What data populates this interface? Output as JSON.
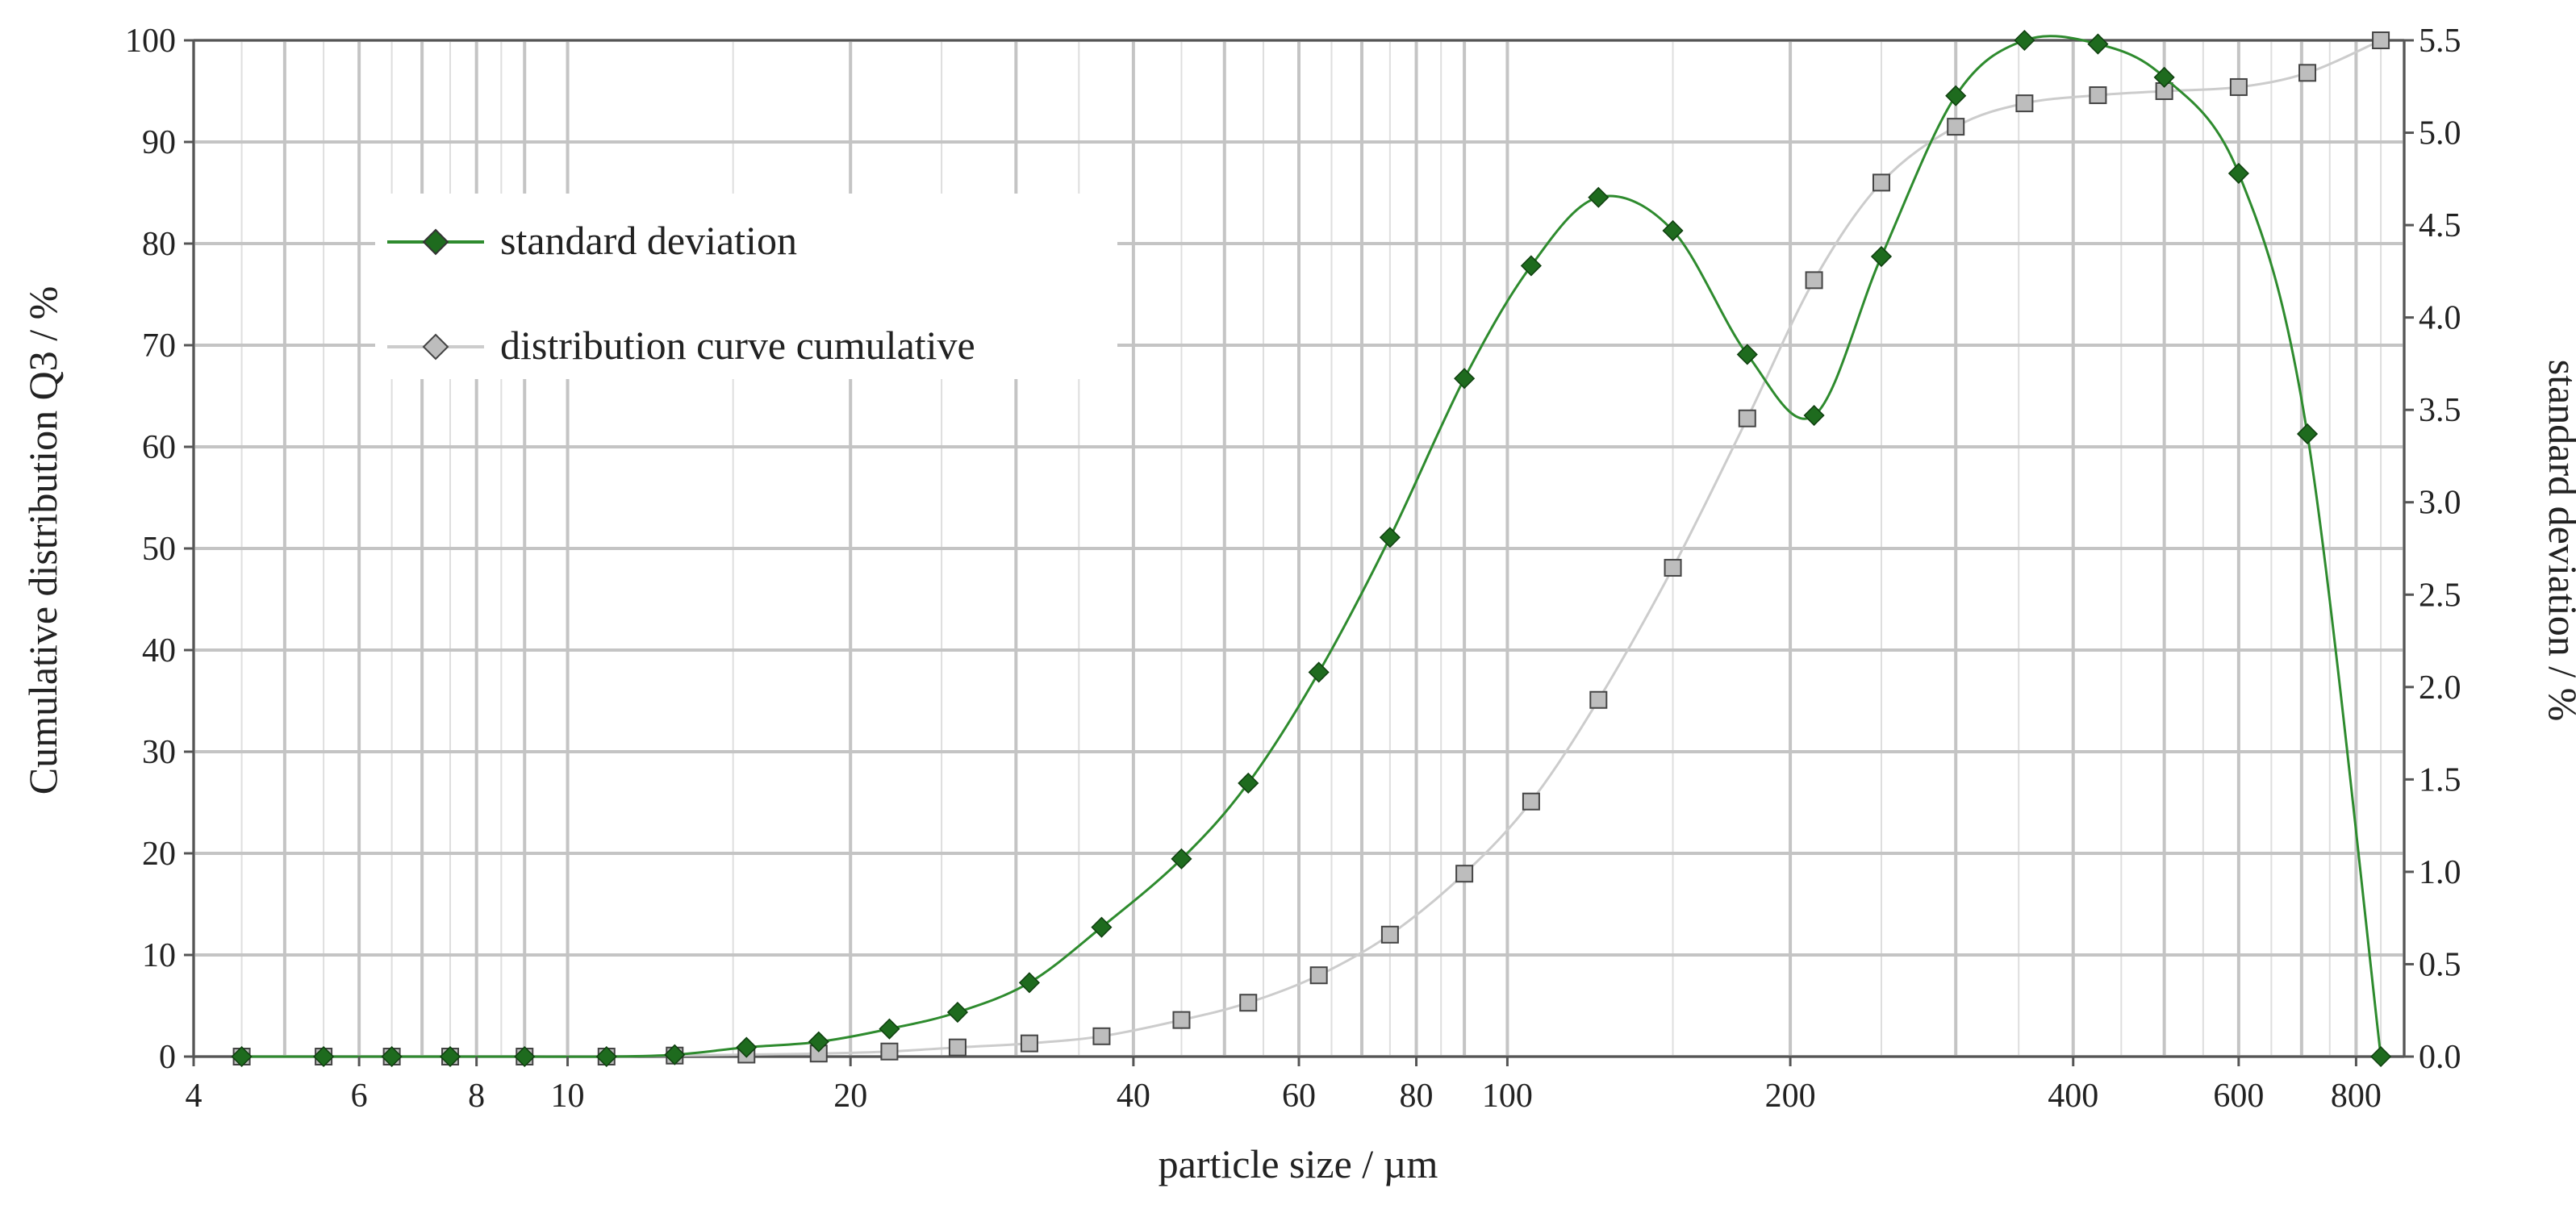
{
  "chart_data": {
    "type": "line",
    "xlabel": "particle size / µm",
    "ylabel": "Cumulative distribution Q3 / %",
    "y2label": "standard deviation / %",
    "x_scale": "log",
    "xlim": [
      4,
      900
    ],
    "ylim": [
      0,
      100
    ],
    "y2lim": [
      0,
      5.5
    ],
    "x_ticks": [
      4,
      6,
      8,
      10,
      20,
      40,
      60,
      80,
      100,
      200,
      400,
      600,
      800
    ],
    "x_tick_labels": [
      "4",
      "6",
      "8",
      "10",
      "20",
      "40",
      "60",
      "80",
      "100",
      "200",
      "400",
      "600",
      "800"
    ],
    "y_ticks": [
      0,
      10,
      20,
      30,
      40,
      50,
      60,
      70,
      80,
      90,
      100
    ],
    "y_tick_labels": [
      "0",
      "10",
      "20",
      "30",
      "40",
      "50",
      "60",
      "70",
      "80",
      "90",
      "100"
    ],
    "y2_ticks": [
      0,
      0.5,
      1,
      1.5,
      2,
      2.5,
      3,
      3.5,
      4,
      4.5,
      5,
      5.5
    ],
    "y2_tick_labels": [
      "0.0",
      "0.5",
      "1.0",
      "1.5",
      "2.0",
      "2.5",
      "3.0",
      "3.5",
      "4.0",
      "4.5",
      "5.0",
      "5.5"
    ],
    "grid": true,
    "legend_position": "upper-left",
    "series": [
      {
        "name": "standard deviation",
        "axis": "right",
        "color": "#2e8b2e",
        "marker_color": "#1e6b1e",
        "marker": "diamond",
        "x": [
          4.5,
          5.5,
          6.5,
          7.5,
          9,
          11,
          13,
          15.5,
          18.5,
          22,
          26,
          31,
          37,
          45,
          53,
          63,
          75,
          90,
          106,
          125,
          150,
          180,
          212,
          250,
          300,
          355,
          425,
          500,
          600,
          710,
          850
        ],
        "y": [
          0,
          0,
          0,
          0,
          0,
          0,
          0.01,
          0.05,
          0.08,
          0.15,
          0.24,
          0.4,
          0.7,
          1.07,
          1.48,
          2.08,
          2.81,
          3.67,
          4.28,
          4.65,
          4.47,
          3.8,
          3.47,
          4.33,
          5.2,
          5.5,
          5.48,
          5.3,
          4.78,
          3.37,
          0
        ]
      },
      {
        "name": "distribution curve cumulative",
        "axis": "left",
        "color": "#cccccc",
        "marker_color": "#bdbdbd",
        "marker": "square",
        "x": [
          4.5,
          5.5,
          6.5,
          7.5,
          9,
          11,
          13,
          15.5,
          18.5,
          22,
          26,
          31,
          37,
          45,
          53,
          63,
          75,
          90,
          106,
          125,
          150,
          180,
          212,
          250,
          300,
          355,
          425,
          500,
          600,
          710,
          850
        ],
        "y": [
          0,
          0,
          0,
          0,
          0,
          0,
          0.1,
          0.2,
          0.3,
          0.5,
          0.9,
          1.3,
          2.0,
          3.6,
          5.3,
          8.0,
          12.0,
          18.0,
          25.1,
          35.1,
          48.1,
          62.8,
          76.4,
          86.0,
          91.5,
          93.8,
          94.6,
          95.0,
          95.4,
          96.8,
          100
        ]
      }
    ]
  }
}
